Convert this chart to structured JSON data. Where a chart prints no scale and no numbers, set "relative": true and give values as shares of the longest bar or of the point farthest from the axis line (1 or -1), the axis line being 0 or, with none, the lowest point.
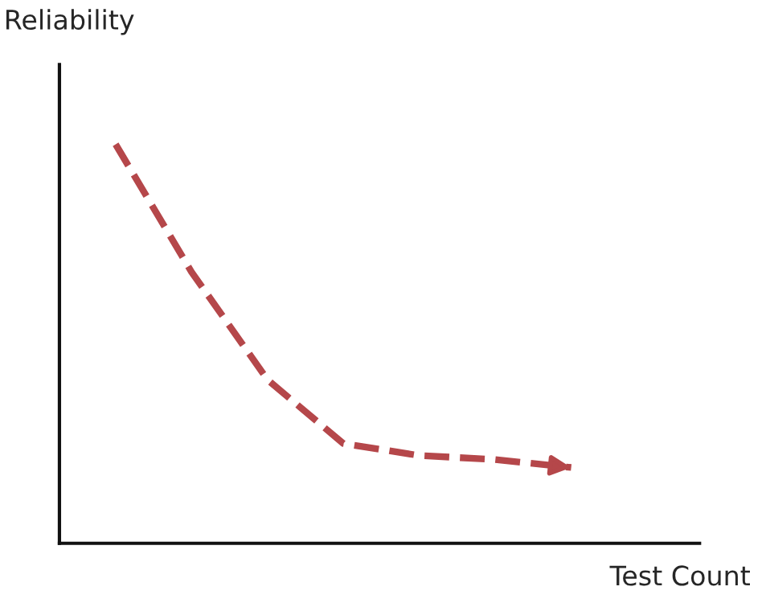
{
  "chart_data": {
    "type": "line",
    "xlabel": "Test Count",
    "ylabel": "Reliability",
    "relative": true,
    "grid": false,
    "legend": false,
    "line_style": "dashed",
    "marker": "none",
    "categories": [
      null,
      null,
      null,
      null,
      null,
      null,
      null
    ],
    "series": [
      {
        "color": "#b5474a",
        "values": [
          1,
          0.68,
          0.41,
          0.25,
          0.22,
          0.21,
          0.19
        ]
      }
    ]
  }
}
